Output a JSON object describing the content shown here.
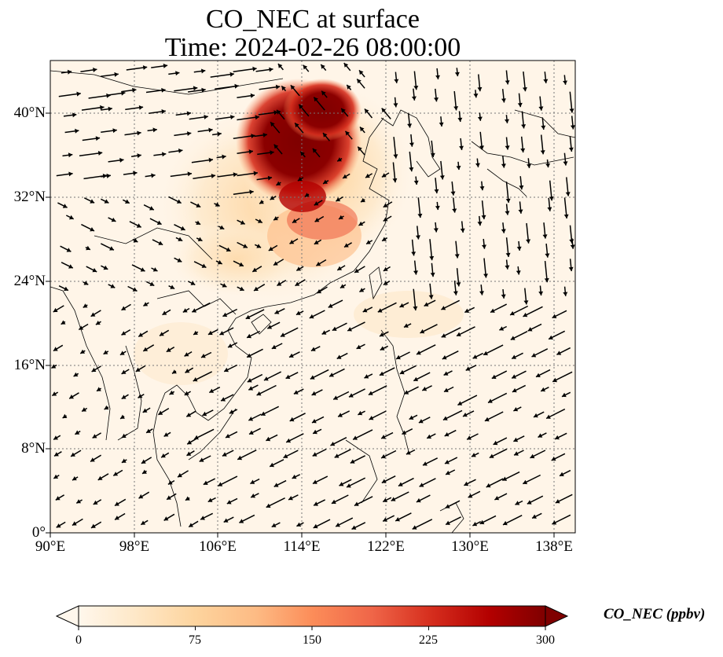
{
  "title_line1": "CO_NEC at surface",
  "title_line2": "Time: 2024-02-26 08:00:00",
  "map": {
    "lon_range": [
      90,
      140
    ],
    "lat_range": [
      0,
      45
    ],
    "lon_ticks": [
      "90°E",
      "98°E",
      "106°E",
      "114°E",
      "122°E",
      "130°E",
      "138°E"
    ],
    "lat_ticks": [
      "0°",
      "8°N",
      "16°N",
      "24°N",
      "32°N",
      "40°N"
    ],
    "field_name": "CO_NEC",
    "overlay": "wind vectors",
    "gridlines": true
  },
  "colorbar": {
    "label": "CO_NEC (ppbv)",
    "ticks": [
      "0",
      "75",
      "150",
      "225",
      "300"
    ],
    "range": [
      0,
      300
    ],
    "colormap": "OrRd",
    "colors": [
      "#fff7ec",
      "#fee8c8",
      "#fdd49e",
      "#fdbb84",
      "#fc8d59",
      "#ef6548",
      "#d7301f",
      "#b30000",
      "#7f0000"
    ],
    "extend": "both"
  }
}
